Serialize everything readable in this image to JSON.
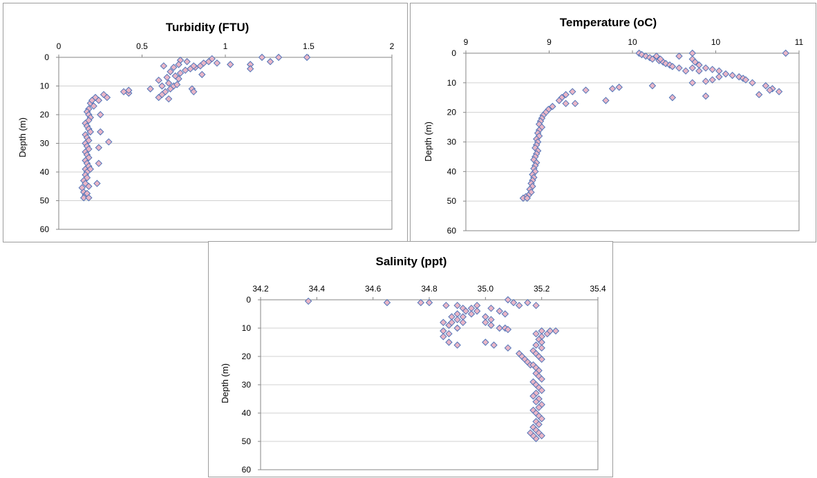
{
  "colors": {
    "marker_fill": "#e9b5c6",
    "marker_stroke": "#4f74b8",
    "grid": "#d0d0d0",
    "frame": "#9c9c9c",
    "axis": "#868686"
  },
  "chart_data": [
    {
      "id": "turbidity",
      "type": "scatter",
      "title": "Turbidity  (FTU)",
      "xlabel": "",
      "ylabel": "Depth (m)",
      "xlim": [
        0,
        2
      ],
      "xticks": [
        "0",
        "0.5",
        "1",
        "1.5",
        "2"
      ],
      "ylim": [
        0,
        60
      ],
      "yticks": [
        "0",
        "10",
        "20",
        "30",
        "40",
        "50",
        "60"
      ],
      "x_axis_position": "top",
      "y_inverted": true,
      "grid": "horizontal",
      "marker": "diamond",
      "points": [
        [
          0.73,
          1
        ],
        [
          0.77,
          1.5
        ],
        [
          0.92,
          0.5
        ],
        [
          0.95,
          2
        ],
        [
          1.03,
          2.5
        ],
        [
          1.22,
          0
        ],
        [
          1.27,
          1.5
        ],
        [
          1.32,
          0
        ],
        [
          1.49,
          0
        ],
        [
          0.63,
          3
        ],
        [
          0.69,
          3.5
        ],
        [
          0.72,
          2.5
        ],
        [
          0.79,
          4
        ],
        [
          0.82,
          3.5
        ],
        [
          0.85,
          3
        ],
        [
          0.87,
          2
        ],
        [
          0.9,
          1.5
        ],
        [
          0.67,
          5
        ],
        [
          0.73,
          5.5
        ],
        [
          0.76,
          4.5
        ],
        [
          0.81,
          3
        ],
        [
          0.86,
          6
        ],
        [
          1.15,
          2.5
        ],
        [
          1.15,
          4
        ],
        [
          0.6,
          8
        ],
        [
          0.65,
          7
        ],
        [
          0.7,
          6.5
        ],
        [
          0.72,
          7.5
        ],
        [
          0.66,
          9
        ],
        [
          0.62,
          10
        ],
        [
          0.69,
          10
        ],
        [
          0.64,
          12
        ],
        [
          0.67,
          11
        ],
        [
          0.71,
          9.5
        ],
        [
          0.8,
          11
        ],
        [
          0.81,
          12
        ],
        [
          0.55,
          11
        ],
        [
          0.62,
          13
        ],
        [
          0.66,
          14.5
        ],
        [
          0.6,
          14
        ],
        [
          0.39,
          12
        ],
        [
          0.42,
          12.5
        ],
        [
          0.42,
          11.5
        ],
        [
          0.22,
          14
        ],
        [
          0.24,
          15
        ],
        [
          0.27,
          13
        ],
        [
          0.29,
          14
        ],
        [
          0.19,
          16
        ],
        [
          0.21,
          17
        ],
        [
          0.18,
          18
        ],
        [
          0.2,
          15
        ],
        [
          0.17,
          19
        ],
        [
          0.18,
          20
        ],
        [
          0.19,
          21
        ],
        [
          0.18,
          22
        ],
        [
          0.25,
          20
        ],
        [
          0.16,
          23
        ],
        [
          0.17,
          24
        ],
        [
          0.18,
          25
        ],
        [
          0.19,
          26
        ],
        [
          0.16,
          27
        ],
        [
          0.17,
          28
        ],
        [
          0.18,
          29
        ],
        [
          0.25,
          26
        ],
        [
          0.3,
          29.5
        ],
        [
          0.24,
          31.5
        ],
        [
          0.16,
          30
        ],
        [
          0.17,
          31
        ],
        [
          0.18,
          32
        ],
        [
          0.16,
          33
        ],
        [
          0.17,
          34
        ],
        [
          0.18,
          35
        ],
        [
          0.16,
          36
        ],
        [
          0.17,
          37
        ],
        [
          0.24,
          37
        ],
        [
          0.18,
          38
        ],
        [
          0.16,
          39
        ],
        [
          0.17,
          40
        ],
        [
          0.19,
          39
        ],
        [
          0.16,
          41
        ],
        [
          0.17,
          42
        ],
        [
          0.15,
          43
        ],
        [
          0.16,
          44
        ],
        [
          0.18,
          45
        ],
        [
          0.23,
          44
        ],
        [
          0.14,
          45.5
        ],
        [
          0.15,
          47
        ],
        [
          0.16,
          48
        ],
        [
          0.17,
          47.5
        ],
        [
          0.15,
          49
        ],
        [
          0.18,
          49
        ]
      ]
    },
    {
      "id": "temperature",
      "type": "scatter",
      "title": "Temperature  (oC)",
      "xlabel": "",
      "ylabel": "Depth (m)",
      "xlim": [
        8.5,
        11
      ],
      "xticks": [
        "9",
        "9",
        "10",
        "10",
        "11"
      ],
      "ylim": [
        0,
        60
      ],
      "yticks": [
        "0",
        "10",
        "20",
        "30",
        "40",
        "50",
        "60"
      ],
      "x_axis_position": "top",
      "y_inverted": true,
      "grid": "horizontal",
      "marker": "diamond",
      "points": [
        [
          9.8,
          0
        ],
        [
          9.82,
          0.5
        ],
        [
          9.85,
          1
        ],
        [
          9.88,
          1.5
        ],
        [
          9.9,
          2
        ],
        [
          9.95,
          2.5
        ],
        [
          9.98,
          3
        ],
        [
          10,
          3.5
        ],
        [
          10.03,
          4
        ],
        [
          10.05,
          4.5
        ],
        [
          9.93,
          1
        ],
        [
          9.96,
          2
        ],
        [
          10.1,
          1
        ],
        [
          10.2,
          0
        ],
        [
          10.2,
          2
        ],
        [
          10.9,
          0
        ],
        [
          10.22,
          3
        ],
        [
          10.25,
          4
        ],
        [
          10.3,
          5
        ],
        [
          10.35,
          5.5
        ],
        [
          10.4,
          6
        ],
        [
          10.45,
          7
        ],
        [
          10.5,
          7.5
        ],
        [
          10.55,
          8
        ],
        [
          10.58,
          8.5
        ],
        [
          10.6,
          9
        ],
        [
          10.65,
          10
        ],
        [
          10.2,
          5
        ],
        [
          10.1,
          5
        ],
        [
          10.15,
          6
        ],
        [
          10.25,
          6
        ],
        [
          10.4,
          8
        ],
        [
          10.35,
          9
        ],
        [
          10.3,
          9.5
        ],
        [
          10.2,
          10
        ],
        [
          10.75,
          11
        ],
        [
          10.8,
          12
        ],
        [
          10.85,
          13
        ],
        [
          10.78,
          12.5
        ],
        [
          10.7,
          14
        ],
        [
          10.3,
          14.5
        ],
        [
          10.05,
          15
        ],
        [
          9.9,
          11
        ],
        [
          9.65,
          11.5
        ],
        [
          9.6,
          12
        ],
        [
          9.4,
          12.5
        ],
        [
          9.55,
          16
        ],
        [
          9.3,
          13
        ],
        [
          9.25,
          14
        ],
        [
          9.22,
          15
        ],
        [
          9.2,
          16
        ],
        [
          9.25,
          17
        ],
        [
          9.32,
          17
        ],
        [
          9.15,
          18
        ],
        [
          9.12,
          19
        ],
        [
          9.1,
          20
        ],
        [
          9.08,
          21
        ],
        [
          9.07,
          22
        ],
        [
          9.06,
          23
        ],
        [
          9.05,
          24
        ],
        [
          9.07,
          25
        ],
        [
          9.05,
          26
        ],
        [
          9.04,
          27
        ],
        [
          9.05,
          28
        ],
        [
          9.03,
          29
        ],
        [
          9.04,
          30
        ],
        [
          9.03,
          31
        ],
        [
          9.02,
          32
        ],
        [
          9.04,
          33
        ],
        [
          9.03,
          34
        ],
        [
          9.02,
          35
        ],
        [
          9.01,
          36
        ],
        [
          9.03,
          37
        ],
        [
          9.02,
          38
        ],
        [
          9.01,
          39
        ],
        [
          9.02,
          40
        ],
        [
          9.0,
          41
        ],
        [
          9.01,
          42
        ],
        [
          9.0,
          43
        ],
        [
          8.99,
          44
        ],
        [
          9.0,
          45
        ],
        [
          8.98,
          46
        ],
        [
          8.99,
          47
        ],
        [
          8.97,
          48
        ],
        [
          8.95,
          48.5
        ],
        [
          8.93,
          49
        ],
        [
          8.96,
          49
        ]
      ]
    },
    {
      "id": "salinity",
      "type": "scatter",
      "title": "Salinity  (ppt)",
      "xlabel": "",
      "ylabel": "Depth (m)",
      "xlim": [
        34.2,
        35.4
      ],
      "xticks": [
        "34.2",
        "34.4",
        "34.6",
        "34.8",
        "35.0",
        "35.2",
        "35.4"
      ],
      "ylim": [
        0,
        60
      ],
      "yticks": [
        "0",
        "10",
        "20",
        "30",
        "40",
        "50",
        "60"
      ],
      "x_axis_position": "top",
      "y_inverted": true,
      "grid": "horizontal",
      "marker": "diamond",
      "points": [
        [
          34.37,
          0.5
        ],
        [
          34.65,
          1
        ],
        [
          34.77,
          1
        ],
        [
          34.8,
          1
        ],
        [
          34.86,
          2
        ],
        [
          35.08,
          0
        ],
        [
          35.1,
          1
        ],
        [
          35.12,
          2
        ],
        [
          35.15,
          1
        ],
        [
          35.18,
          2
        ],
        [
          34.9,
          2
        ],
        [
          34.92,
          3
        ],
        [
          34.95,
          3
        ],
        [
          34.97,
          2
        ],
        [
          34.93,
          4
        ],
        [
          34.9,
          5
        ],
        [
          34.88,
          6
        ],
        [
          34.9,
          7
        ],
        [
          34.92,
          6
        ],
        [
          34.95,
          5
        ],
        [
          34.97,
          4
        ],
        [
          35.02,
          3
        ],
        [
          35.05,
          4
        ],
        [
          35.07,
          5
        ],
        [
          35.0,
          6
        ],
        [
          35.02,
          7
        ],
        [
          34.85,
          8
        ],
        [
          34.87,
          9
        ],
        [
          34.9,
          10
        ],
        [
          34.88,
          8
        ],
        [
          34.92,
          8
        ],
        [
          34.85,
          11
        ],
        [
          34.87,
          12
        ],
        [
          34.85,
          13
        ],
        [
          34.87,
          15
        ],
        [
          34.9,
          16
        ],
        [
          35.0,
          8
        ],
        [
          35.02,
          9
        ],
        [
          35.05,
          10
        ],
        [
          35.07,
          10
        ],
        [
          35.08,
          10.5
        ],
        [
          35.0,
          15
        ],
        [
          35.03,
          16
        ],
        [
          35.08,
          17
        ],
        [
          35.12,
          19
        ],
        [
          35.13,
          20
        ],
        [
          35.14,
          21
        ],
        [
          35.15,
          22
        ],
        [
          35.16,
          23
        ],
        [
          35.2,
          11
        ],
        [
          35.22,
          12
        ],
        [
          35.23,
          11
        ],
        [
          35.25,
          11
        ],
        [
          35.18,
          12
        ],
        [
          35.2,
          13
        ],
        [
          35.19,
          14
        ],
        [
          35.2,
          15
        ],
        [
          35.18,
          16
        ],
        [
          35.2,
          17
        ],
        [
          35.17,
          18
        ],
        [
          35.18,
          19
        ],
        [
          35.19,
          20
        ],
        [
          35.2,
          21
        ],
        [
          35.17,
          23
        ],
        [
          35.18,
          24
        ],
        [
          35.19,
          25
        ],
        [
          35.18,
          26
        ],
        [
          35.19,
          27
        ],
        [
          35.2,
          28
        ],
        [
          35.17,
          29
        ],
        [
          35.18,
          30
        ],
        [
          35.19,
          31
        ],
        [
          35.2,
          32
        ],
        [
          35.18,
          33
        ],
        [
          35.17,
          34
        ],
        [
          35.19,
          35
        ],
        [
          35.18,
          36
        ],
        [
          35.2,
          37
        ],
        [
          35.19,
          38
        ],
        [
          35.17,
          39
        ],
        [
          35.18,
          40
        ],
        [
          35.19,
          41
        ],
        [
          35.2,
          42
        ],
        [
          35.18,
          43
        ],
        [
          35.19,
          44
        ],
        [
          35.17,
          45
        ],
        [
          35.18,
          46
        ],
        [
          35.19,
          47
        ],
        [
          35.2,
          48
        ],
        [
          35.18,
          49
        ],
        [
          35.17,
          48
        ],
        [
          35.16,
          47
        ]
      ]
    }
  ]
}
